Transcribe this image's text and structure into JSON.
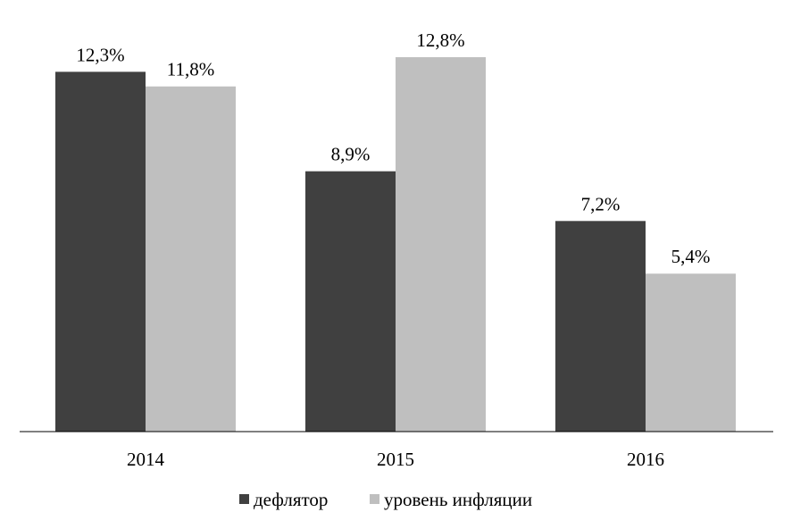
{
  "chart_data": {
    "type": "bar",
    "categories": [
      "2014",
      "2015",
      "2016"
    ],
    "series": [
      {
        "name": "дефлятор",
        "values": [
          12.3,
          8.9,
          7.2
        ],
        "labels": [
          "12,3%",
          "8,9%",
          "7,2%"
        ],
        "color": "#404040"
      },
      {
        "name": "уровень инфляции",
        "values": [
          11.8,
          12.8,
          5.4
        ],
        "labels": [
          "11,8%",
          "12,8%",
          "5,4%"
        ],
        "color": "#bfbfbf"
      }
    ],
    "ylim": [
      0,
      12.8
    ],
    "grid": false,
    "legend_position": "bottom",
    "title": "",
    "xlabel": "",
    "ylabel": ""
  }
}
